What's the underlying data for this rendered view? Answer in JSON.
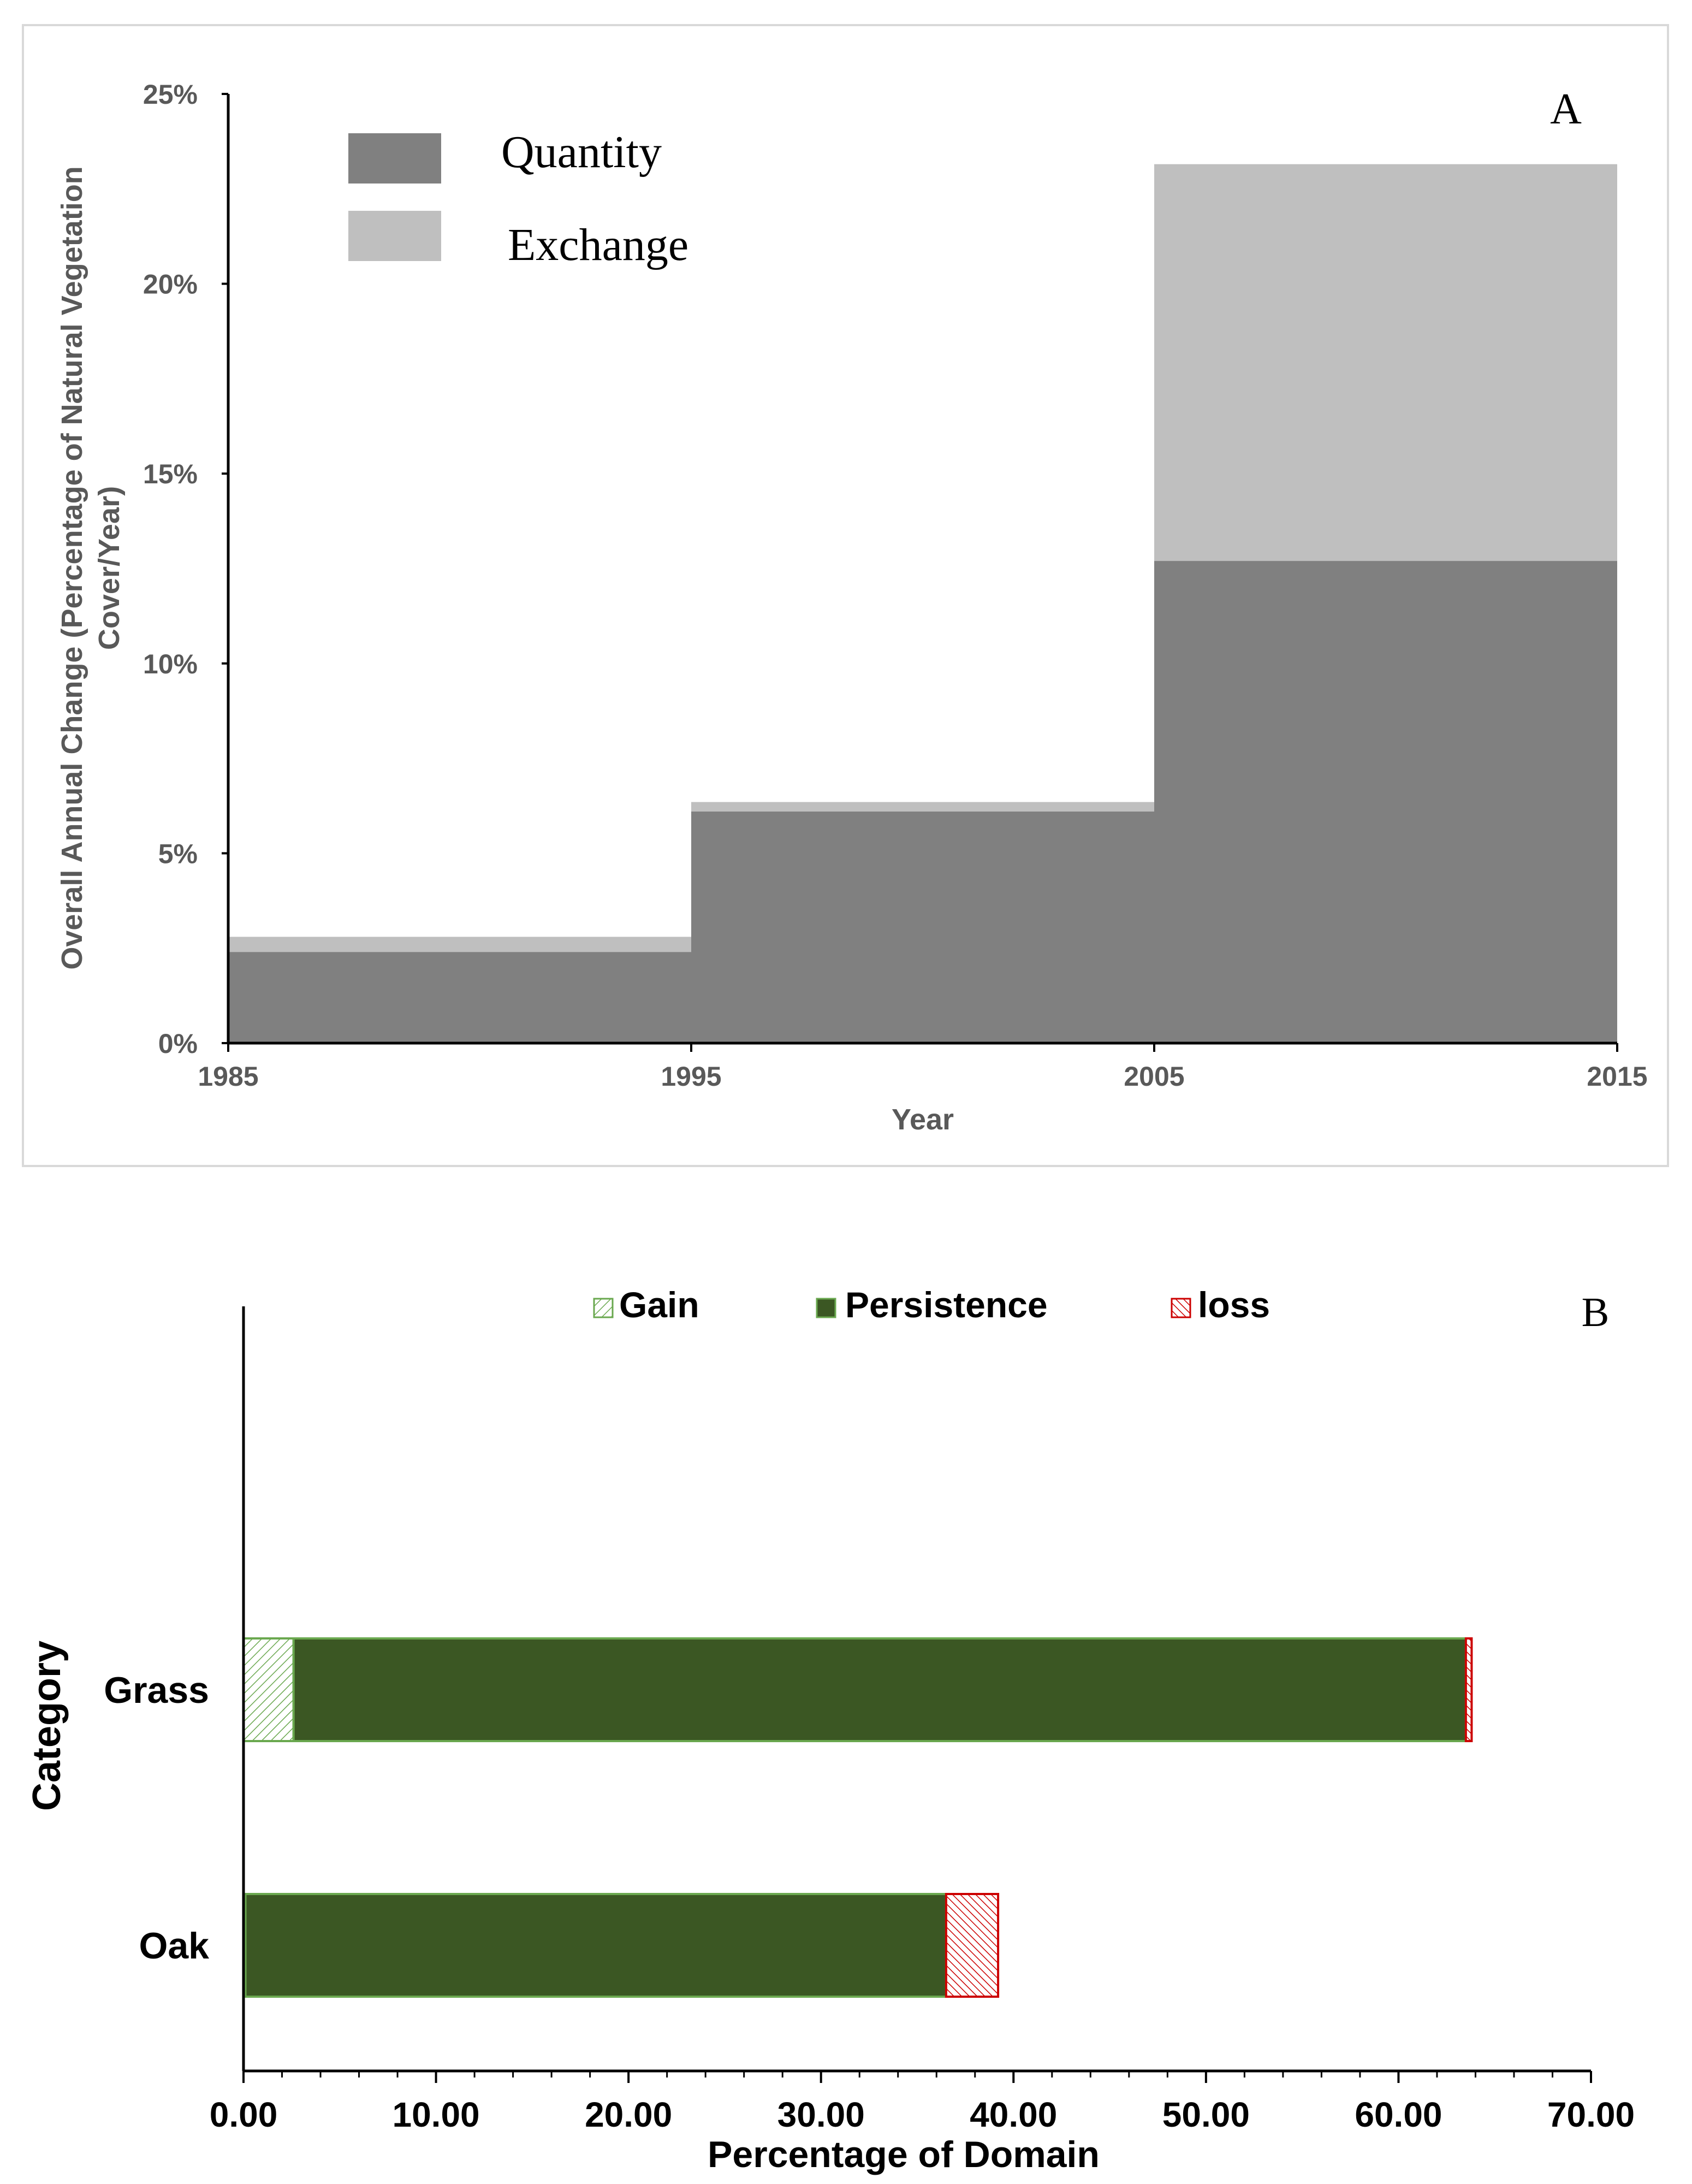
{
  "colors": {
    "quantity": "#808080",
    "exchange": "#bfbfbf",
    "axis_text_a": "#595959",
    "persistence": "#3b5723",
    "gain_stroke": "#6aa84f",
    "loss_stroke": "#cc0000"
  },
  "chart_data": [
    {
      "type": "area",
      "panel_label": "A",
      "title": "",
      "xlabel": "Year",
      "ylabel": "Overall Annual Change (Percentage of Natural Vegetation Cover/Year)",
      "x_ticks": [
        "1985",
        "1995",
        "2005",
        "2015"
      ],
      "y_ticks": [
        "0%",
        "5%",
        "10%",
        "15%",
        "20%",
        "25%"
      ],
      "xlim": [
        1985,
        2015
      ],
      "ylim": [
        0,
        25
      ],
      "legend_position": "top-left",
      "intervals": [
        {
          "start": 1985,
          "end": 1995
        },
        {
          "start": 1995,
          "end": 2005
        },
        {
          "start": 2005,
          "end": 2015
        }
      ],
      "series": [
        {
          "name": "Quantity",
          "values": [
            2.4,
            6.1,
            12.7
          ]
        },
        {
          "name": "Exchange",
          "values": [
            0.4,
            0.25,
            10.45
          ]
        }
      ]
    },
    {
      "type": "bar",
      "orientation": "horizontal",
      "stacked": true,
      "panel_label": "B",
      "title": "",
      "xlabel": "Percentage of Domain",
      "ylabel": "Category",
      "categories": [
        "Grass",
        "Oak"
      ],
      "x_ticks": [
        "0.00",
        "10.00",
        "20.00",
        "30.00",
        "40.00",
        "50.00",
        "60.00",
        "70.00"
      ],
      "xlim": [
        0,
        70
      ],
      "legend_position": "top",
      "series": [
        {
          "name": "Gain",
          "values": [
            2.6,
            0.1
          ]
        },
        {
          "name": "Persistence",
          "values": [
            60.9,
            36.4
          ]
        },
        {
          "name": "loss",
          "values": [
            0.3,
            2.7
          ]
        }
      ]
    }
  ]
}
